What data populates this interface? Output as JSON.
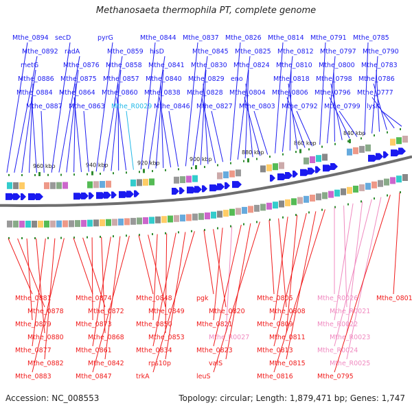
{
  "title": "Methanosaeta thermophila PT, complete genome",
  "footer": {
    "accession": "Accession: NC_008553",
    "topology": "Topology: circular; Length: 1,879,471 bp; Genes: 1,747"
  },
  "colors": {
    "forward": "#1a1af0",
    "reverse": "#f01a1a",
    "rna_forward": "#20b8e8",
    "rna_reverse": "#f08ac0",
    "backbone": "#6e6e6e",
    "tick": "#2e8b2e"
  },
  "scale_labels": [
    "960 kbp",
    "940 kbp",
    "920 kbp",
    "900 kbp",
    "880 kbp",
    "860 kbp",
    "840 kbp"
  ],
  "top_labels": [
    {
      "text": "Mthe_0894",
      "kind": "forward"
    },
    {
      "text": "Mthe_0892",
      "kind": "forward"
    },
    {
      "text": "metG",
      "kind": "forward"
    },
    {
      "text": "Mthe_0886",
      "kind": "forward"
    },
    {
      "text": "Mthe_0884",
      "kind": "forward"
    },
    {
      "text": "Mthe_0887",
      "kind": "forward"
    },
    {
      "text": "secD",
      "kind": "forward"
    },
    {
      "text": "radA",
      "kind": "forward"
    },
    {
      "text": "Mthe_0876",
      "kind": "forward"
    },
    {
      "text": "Mthe_0875",
      "kind": "forward"
    },
    {
      "text": "Mthe_0864",
      "kind": "forward"
    },
    {
      "text": "Mthe_0863",
      "kind": "forward"
    },
    {
      "text": "pyrG",
      "kind": "forward"
    },
    {
      "text": "Mthe_0859",
      "kind": "forward"
    },
    {
      "text": "Mthe_0858",
      "kind": "forward"
    },
    {
      "text": "Mthe_0857",
      "kind": "forward"
    },
    {
      "text": "Mthe_0860",
      "kind": "forward"
    },
    {
      "text": "Mthe_R0029",
      "kind": "rna_forward"
    },
    {
      "text": "Mthe_0844",
      "kind": "forward"
    },
    {
      "text": "hisD",
      "kind": "forward"
    },
    {
      "text": "Mthe_0841",
      "kind": "forward"
    },
    {
      "text": "Mthe_0840",
      "kind": "forward"
    },
    {
      "text": "Mthe_0838",
      "kind": "forward"
    },
    {
      "text": "Mthe_0846",
      "kind": "forward"
    },
    {
      "text": "Mthe_0837",
      "kind": "forward"
    },
    {
      "text": "Mthe_0845",
      "kind": "forward"
    },
    {
      "text": "Mthe_0830",
      "kind": "forward"
    },
    {
      "text": "Mthe_0829",
      "kind": "forward"
    },
    {
      "text": "Mthe_0828",
      "kind": "forward"
    },
    {
      "text": "Mthe_0827",
      "kind": "forward"
    },
    {
      "text": "Mthe_0826",
      "kind": "forward"
    },
    {
      "text": "Mthe_0825",
      "kind": "forward"
    },
    {
      "text": "Mthe_0824",
      "kind": "forward"
    },
    {
      "text": "eno",
      "kind": "forward"
    },
    {
      "text": "Mthe_0804",
      "kind": "forward"
    },
    {
      "text": "Mthe_0803",
      "kind": "forward"
    },
    {
      "text": "Mthe_0814",
      "kind": "forward"
    },
    {
      "text": "Mthe_0812",
      "kind": "forward"
    },
    {
      "text": "Mthe_0810",
      "kind": "forward"
    },
    {
      "text": "Mthe_0818",
      "kind": "forward"
    },
    {
      "text": "Mthe_0806",
      "kind": "forward"
    },
    {
      "text": "Mthe_0792",
      "kind": "forward"
    },
    {
      "text": "Mthe_0791",
      "kind": "forward"
    },
    {
      "text": "Mthe_0797",
      "kind": "forward"
    },
    {
      "text": "Mthe_0800",
      "kind": "forward"
    },
    {
      "text": "Mthe_0798",
      "kind": "forward"
    },
    {
      "text": "Mthe_0796",
      "kind": "forward"
    },
    {
      "text": "Mthe_0799",
      "kind": "forward"
    },
    {
      "text": "Mthe_0785",
      "kind": "forward"
    },
    {
      "text": "Mthe_0790",
      "kind": "forward"
    },
    {
      "text": "Mthe_0783",
      "kind": "forward"
    },
    {
      "text": "Mthe_0786",
      "kind": "forward"
    },
    {
      "text": "Mthe_0777",
      "kind": "forward"
    },
    {
      "text": "lysK",
      "kind": "forward"
    }
  ],
  "bottom_labels": [
    {
      "text": "Mthe_0881",
      "kind": "reverse"
    },
    {
      "text": "Mthe_0878",
      "kind": "reverse"
    },
    {
      "text": "Mthe_0879",
      "kind": "reverse"
    },
    {
      "text": "Mthe_0880",
      "kind": "reverse"
    },
    {
      "text": "Mthe_0877",
      "kind": "reverse"
    },
    {
      "text": "Mthe_0882",
      "kind": "reverse"
    },
    {
      "text": "Mthe_0883",
      "kind": "reverse"
    },
    {
      "text": "Mthe_0874",
      "kind": "reverse"
    },
    {
      "text": "Mthe_0872",
      "kind": "reverse"
    },
    {
      "text": "Mthe_0873",
      "kind": "reverse"
    },
    {
      "text": "Mthe_0868",
      "kind": "reverse"
    },
    {
      "text": "Mthe_0861",
      "kind": "reverse"
    },
    {
      "text": "Mthe_0842",
      "kind": "reverse"
    },
    {
      "text": "Mthe_0847",
      "kind": "reverse"
    },
    {
      "text": "Mthe_0848",
      "kind": "reverse"
    },
    {
      "text": "Mthe_0849",
      "kind": "reverse"
    },
    {
      "text": "Mthe_0850",
      "kind": "reverse"
    },
    {
      "text": "Mthe_0853",
      "kind": "reverse"
    },
    {
      "text": "Mthe_0834",
      "kind": "reverse"
    },
    {
      "text": "rps10p",
      "kind": "reverse"
    },
    {
      "text": "trkA",
      "kind": "reverse"
    },
    {
      "text": "pgk",
      "kind": "reverse"
    },
    {
      "text": "Mthe_0820",
      "kind": "reverse"
    },
    {
      "text": "Mthe_0821",
      "kind": "reverse"
    },
    {
      "text": "Mthe_R0027",
      "kind": "rna_reverse"
    },
    {
      "text": "Mthe_0823",
      "kind": "reverse"
    },
    {
      "text": "valS",
      "kind": "reverse"
    },
    {
      "text": "leuS",
      "kind": "reverse"
    },
    {
      "text": "Mthe_0805",
      "kind": "reverse"
    },
    {
      "text": "Mthe_0808",
      "kind": "reverse"
    },
    {
      "text": "Mthe_0809",
      "kind": "reverse"
    },
    {
      "text": "Mthe_0811",
      "kind": "reverse"
    },
    {
      "text": "Mthe_0813",
      "kind": "reverse"
    },
    {
      "text": "Mthe_0815",
      "kind": "reverse"
    },
    {
      "text": "Mthe_0816",
      "kind": "reverse"
    },
    {
      "text": "Mthe_R0026",
      "kind": "rna_reverse"
    },
    {
      "text": "Mthe_R0021",
      "kind": "rna_reverse"
    },
    {
      "text": "Mthe_R0022",
      "kind": "rna_reverse"
    },
    {
      "text": "Mthe_R0023",
      "kind": "rna_reverse"
    },
    {
      "text": "Mthe_R0024",
      "kind": "rna_reverse"
    },
    {
      "text": "Mthe_R0025",
      "kind": "rna_reverse"
    },
    {
      "text": "Mthe_0795",
      "kind": "reverse"
    },
    {
      "text": "Mthe_0801",
      "kind": "reverse"
    }
  ]
}
